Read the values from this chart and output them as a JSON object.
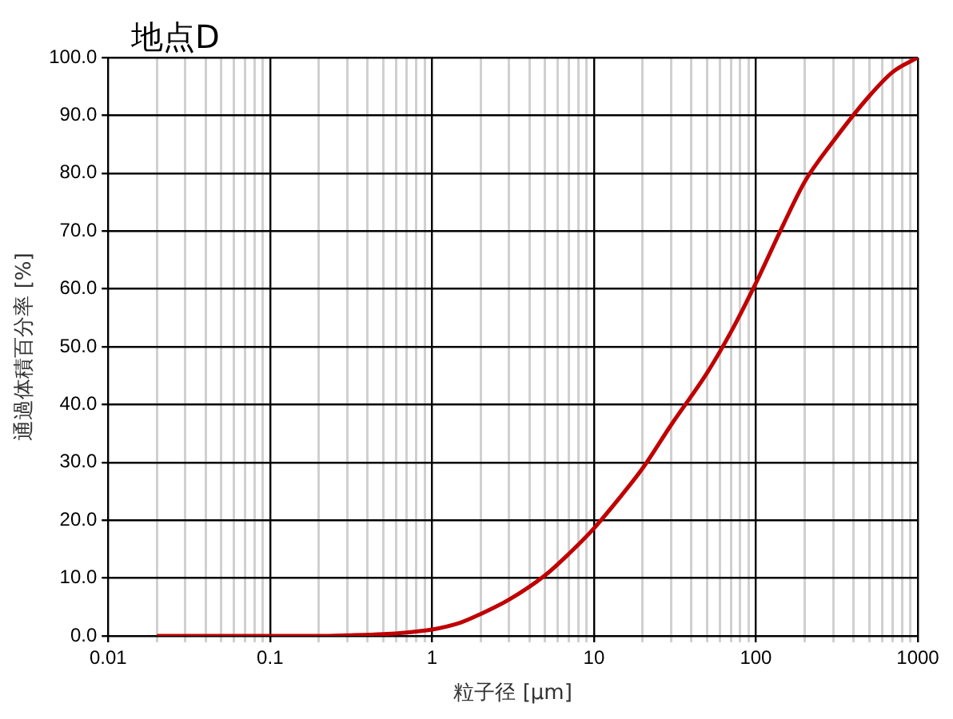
{
  "chart_data": {
    "type": "line",
    "title": "地点D",
    "xlabel": "粒子径 [μm]",
    "ylabel": "通過体積百分率 [%]",
    "log": "x",
    "grid": true,
    "legend": false,
    "marker": "none",
    "line_style": "solid",
    "xlim": [
      0.01,
      1000
    ],
    "xticks": [
      0.01,
      {
        "value": 0.02,
        "label": null
      },
      {
        "value": 0.03,
        "label": null
      },
      {
        "value": 0.04,
        "label": null
      },
      {
        "value": 0.05,
        "label": null
      },
      {
        "value": 0.06,
        "label": null
      },
      {
        "value": 0.07,
        "label": null
      },
      {
        "value": 0.08,
        "label": null
      },
      {
        "value": 0.09,
        "label": null
      },
      0.1,
      {
        "value": 0.2,
        "label": null
      },
      {
        "value": 0.3,
        "label": null
      },
      {
        "value": 0.4,
        "label": null
      },
      {
        "value": 0.5,
        "label": null
      },
      {
        "value": 0.6,
        "label": null
      },
      {
        "value": 0.7,
        "label": null
      },
      {
        "value": 0.8,
        "label": null
      },
      {
        "value": 0.9,
        "label": null
      },
      1,
      {
        "value": 2,
        "label": null
      },
      {
        "value": 3,
        "label": null
      },
      {
        "value": 4,
        "label": null
      },
      {
        "value": 5,
        "label": null
      },
      {
        "value": 6,
        "label": null
      },
      {
        "value": 7,
        "label": null
      },
      {
        "value": 8,
        "label": null
      },
      {
        "value": 9,
        "label": null
      },
      10,
      {
        "value": 20,
        "label": null
      },
      {
        "value": 30,
        "label": null
      },
      {
        "value": 40,
        "label": null
      },
      {
        "value": 50,
        "label": null
      },
      {
        "value": 60,
        "label": null
      },
      {
        "value": 70,
        "label": null
      },
      {
        "value": 80,
        "label": null
      },
      {
        "value": 90,
        "label": null
      },
      100,
      {
        "value": 200,
        "label": null
      },
      {
        "value": 300,
        "label": null
      },
      {
        "value": 400,
        "label": null
      },
      {
        "value": 500,
        "label": null
      },
      {
        "value": 600,
        "label": null
      },
      {
        "value": 700,
        "label": null
      },
      {
        "value": 800,
        "label": null
      },
      {
        "value": 900,
        "label": null
      },
      1000
    ],
    "ylim": [
      0,
      100
    ],
    "yticks": [
      {
        "value": 0,
        "label": "0.0"
      },
      {
        "value": 10,
        "label": "10.0"
      },
      {
        "value": 20,
        "label": "20.0"
      },
      {
        "value": 30,
        "label": "30.0"
      },
      {
        "value": 40,
        "label": "40.0"
      },
      {
        "value": 50,
        "label": "50.0"
      },
      {
        "value": 60,
        "label": "60.0"
      },
      {
        "value": 70,
        "label": "70.0"
      },
      {
        "value": 80,
        "label": "80.0"
      },
      {
        "value": 90,
        "label": "90.0"
      },
      {
        "value": 100,
        "label": "100.0"
      }
    ],
    "series": [
      {
        "color": "#c00000",
        "x": [
          0.02,
          0.05,
          0.1,
          0.2,
          0.3,
          0.5,
          0.7,
          1,
          1.5,
          2,
          3,
          5,
          7,
          10,
          15,
          20,
          30,
          50,
          70,
          100,
          150,
          200,
          300,
          500,
          700,
          1000
        ],
        "values": [
          0,
          0,
          0,
          0,
          0.1,
          0.3,
          0.6,
          1.1,
          2.3,
          3.8,
          6.3,
          10.5,
          14.2,
          18.6,
          24.5,
          29,
          36.5,
          45.5,
          52.5,
          61,
          71.5,
          78.5,
          85.5,
          93.3,
          97.5,
          100
        ]
      }
    ]
  }
}
